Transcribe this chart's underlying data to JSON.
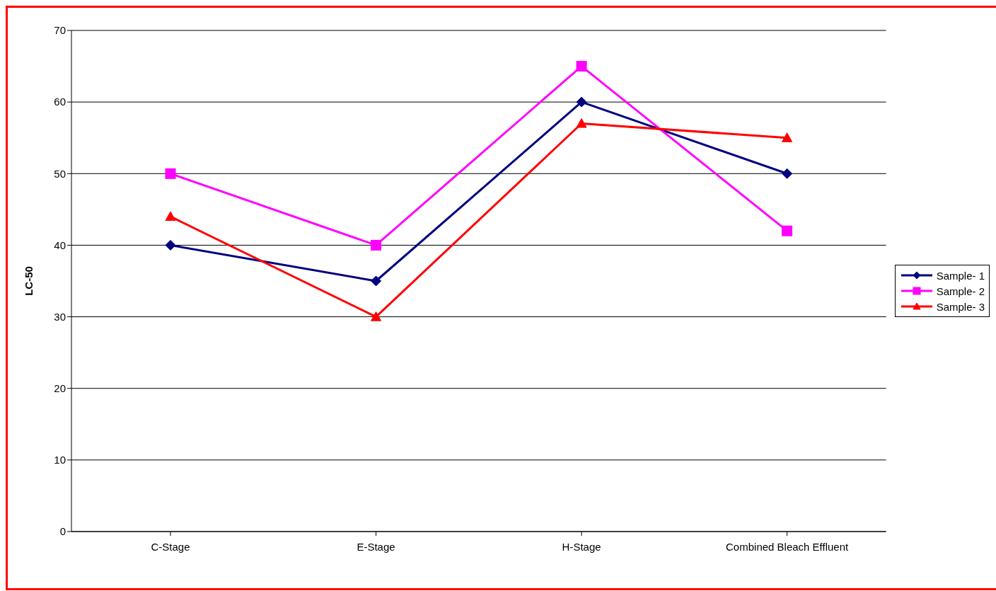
{
  "chart_data": {
    "type": "line",
    "ylabel": "LC-50",
    "categories": [
      "C-Stage",
      "E-Stage",
      "H-Stage",
      "Combined Bleach Effluent"
    ],
    "series": [
      {
        "name": "Sample- 1",
        "color": "#000080",
        "marker": "diamond",
        "values": [
          40,
          35,
          60,
          50
        ]
      },
      {
        "name": "Sample- 2",
        "color": "#ff00ff",
        "marker": "square",
        "values": [
          50,
          40,
          65,
          42
        ]
      },
      {
        "name": "Sample- 3",
        "color": "#ff0000",
        "marker": "triangle",
        "values": [
          44,
          30,
          57,
          55
        ]
      }
    ],
    "ylim": [
      0,
      70
    ],
    "yticks": [
      0,
      10,
      20,
      30,
      40,
      50,
      60,
      70
    ],
    "grid": "y",
    "legend": "right"
  }
}
